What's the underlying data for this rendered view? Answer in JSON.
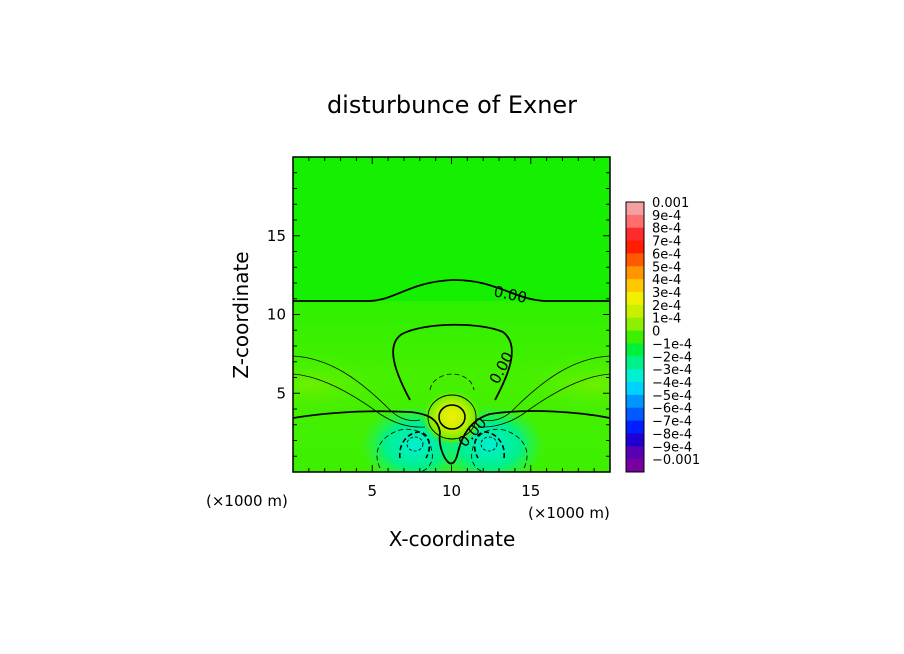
{
  "chart_data": {
    "type": "heatmap",
    "title": "disturbunce of Exner",
    "xlabel": "X-coordinate",
    "ylabel": "Z-coordinate",
    "x_unit": "(×1000 m)",
    "z_unit": "(×1000 m)",
    "xlim": [
      0,
      20
    ],
    "ylim": [
      0,
      20
    ],
    "x_ticks": [
      5,
      10,
      15
    ],
    "y_ticks": [
      5,
      10,
      15
    ],
    "contour_label": "0.00",
    "colorbar": {
      "labels": [
        "0.001",
        "9e-4",
        "8e-4",
        "7e-4",
        "6e-4",
        "5e-4",
        "4e-4",
        "3e-4",
        "2e-4",
        "1e-4",
        "0",
        "−1e-4",
        "−2e-4",
        "−3e-4",
        "−4e-4",
        "−5e-4",
        "−6e-4",
        "−7e-4",
        "−8e-4",
        "−9e-4",
        "−0.001"
      ],
      "colors": [
        "#f2a0a0",
        "#ff6e6e",
        "#ff2a2a",
        "#ff1e00",
        "#ff5a00",
        "#ff9600",
        "#ffc800",
        "#f0f000",
        "#c8f000",
        "#8cf000",
        "#3cf000",
        "#00f03c",
        "#00f08c",
        "#00f0d2",
        "#00d2ff",
        "#0096ff",
        "#005aff",
        "#001eff",
        "#1e00d2",
        "#5a00b4",
        "#7800a0"
      ]
    },
    "field": {
      "background_value": 0.0,
      "features": [
        {
          "name": "positive-center",
          "x": 10,
          "z": 3.5,
          "value": 0.0003
        },
        {
          "name": "negative-left",
          "x": 7.7,
          "z": 2.0,
          "value": -0.0003
        },
        {
          "name": "negative-right",
          "x": 12.3,
          "z": 2.0,
          "value": -0.0003
        },
        {
          "name": "positive-left-lobe",
          "x": 1.0,
          "z": 5.5,
          "value": 0.0001
        },
        {
          "name": "positive-right-lobe",
          "x": 19.0,
          "z": 5.5,
          "value": 0.0001
        }
      ]
    }
  }
}
